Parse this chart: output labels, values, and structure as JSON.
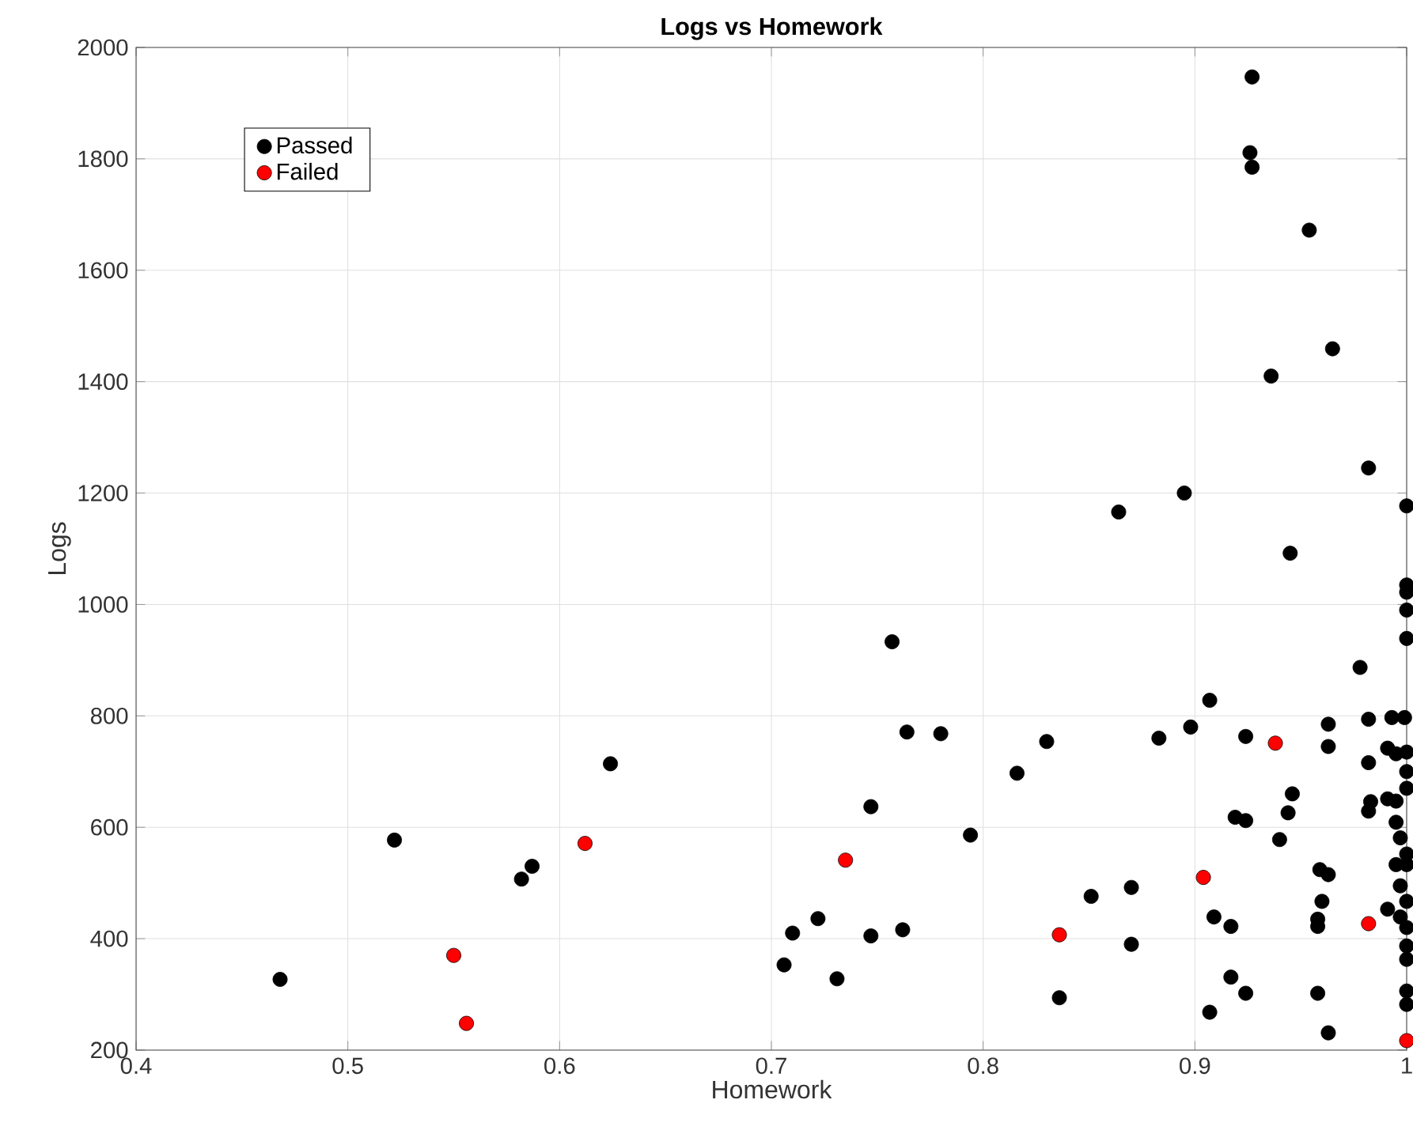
{
  "chart_data": {
    "type": "scatter",
    "title": "Logs vs Homework",
    "xlabel": "Homework",
    "ylabel": "Logs",
    "xlim": [
      0.4,
      1
    ],
    "ylim": [
      200,
      2000
    ],
    "xticks": [
      0.4,
      0.5,
      0.6,
      0.7,
      0.8,
      0.9,
      1
    ],
    "yticks": [
      200,
      400,
      600,
      800,
      1000,
      1200,
      1400,
      1600,
      1800,
      2000
    ],
    "grid": true,
    "legend": "top left",
    "marker": "circle",
    "series": [
      {
        "name": "Passed",
        "color": "#000000",
        "x": [
          0.468,
          0.522,
          0.582,
          0.587,
          0.624,
          0.757,
          0.764,
          0.78,
          0.747,
          0.794,
          0.722,
          0.71,
          0.706,
          0.731,
          0.747,
          0.762,
          0.816,
          0.83,
          0.883,
          0.898,
          0.907,
          0.924,
          0.919,
          0.924,
          0.909,
          0.917,
          0.851,
          0.87,
          0.87,
          0.836,
          0.917,
          0.924,
          0.907,
          0.94,
          0.946,
          0.944,
          0.963,
          0.963,
          0.978,
          0.982,
          0.991,
          0.982,
          0.983,
          0.982,
          0.991,
          0.993,
          0.999,
          0.959,
          0.963,
          0.96,
          0.958,
          0.958,
          0.991,
          0.958,
          0.963,
          0.927,
          0.926,
          0.927,
          0.954,
          0.965,
          0.936,
          0.982,
          0.945,
          0.864,
          0.895,
          1.0,
          1.0,
          1.0,
          1.0,
          1.0,
          0.995,
          1.0,
          0.995,
          0.995,
          0.997,
          1.0,
          0.995,
          1.0,
          0.997,
          1.0,
          0.997,
          1.0,
          1.0,
          1.0,
          1.0,
          1.0,
          1.0,
          1.0
        ],
        "values": [
          327,
          577,
          507,
          530,
          714,
          933,
          771,
          768,
          637,
          586,
          436,
          410,
          353,
          328,
          405,
          416,
          697,
          754,
          760,
          780,
          828,
          763,
          618,
          612,
          439,
          422,
          476,
          492,
          390,
          294,
          331,
          302,
          268,
          578,
          660,
          626,
          785,
          745,
          887,
          794,
          742,
          716,
          646,
          629,
          651,
          797,
          797,
          524,
          515,
          467,
          435,
          422,
          453,
          302,
          231,
          1947,
          1811,
          1785,
          1672,
          1459,
          1410,
          1245,
          1092,
          1166,
          1200,
          1177,
          1035,
          1022,
          990,
          939,
          732,
          735,
          647,
          609,
          581,
          552,
          533,
          533,
          495,
          467,
          439,
          420,
          387,
          363,
          306,
          282,
          700,
          670
        ]
      },
      {
        "name": "Failed",
        "color": "#ff0000",
        "x": [
          0.55,
          0.556,
          0.612,
          0.735,
          0.836,
          0.904,
          0.938,
          0.982,
          1.0
        ],
        "values": [
          370,
          248,
          571,
          541,
          407,
          510,
          751,
          427,
          217
        ]
      }
    ]
  }
}
